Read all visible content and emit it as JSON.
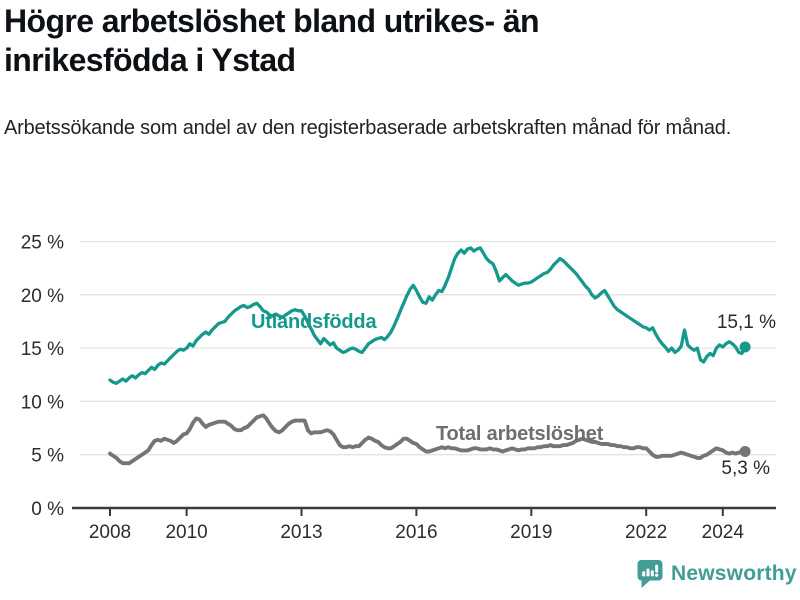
{
  "header": {
    "title": "Högre arbetslöshet bland utrikes- än inrikesfödda i Ystad",
    "subtitle": "Arbetssökande som andel av den registerbaserade arbetskraften månad för månad."
  },
  "footer": {
    "brand": "Newsworthy",
    "brand_icon": "bar-chart-speech-bubble-icon",
    "brand_color": "#419d96"
  },
  "colors": {
    "accent_teal": "#14998c",
    "series_gray": "#757578",
    "gridline": "#e3e3e3",
    "axis": "#3a3a3a",
    "tick_label": "#2d2d2d",
    "background": "#ffffff"
  },
  "chart_data": {
    "type": "line",
    "title": "Högre arbetslöshet bland utrikes- än inrikesfödda i Ystad",
    "subtitle": "Arbetssökande som andel av den registerbaserade arbetskraften månad för månad.",
    "unit": "%",
    "frequency": "monthly",
    "x_start": "2008-01",
    "x_end": "2024-08",
    "x_ticks": [
      2008,
      2010,
      2013,
      2016,
      2019,
      2022,
      2024
    ],
    "x_tick_labels": [
      "2008",
      "2010",
      "2013",
      "2016",
      "2019",
      "2022",
      "2024"
    ],
    "y_ticks": [
      0,
      5,
      10,
      15,
      20,
      25
    ],
    "y_tick_labels": [
      "0 %",
      "5 %",
      "10 %",
      "15 %",
      "20 %",
      "25 %"
    ],
    "ylim": [
      0,
      26.5
    ],
    "grid": "horizontal",
    "legend_position": "inline-labels",
    "series": [
      {
        "name": "Utlandsfödda",
        "color": "#14998c",
        "end_label": "15,1 %",
        "last_value": 15.1,
        "values": [
          12.0,
          11.8,
          11.7,
          11.9,
          12.1,
          11.9,
          12.2,
          12.4,
          12.2,
          12.5,
          12.7,
          12.6,
          12.9,
          13.2,
          13.0,
          13.4,
          13.6,
          13.5,
          13.8,
          14.1,
          14.4,
          14.7,
          14.9,
          14.8,
          15.0,
          15.4,
          15.2,
          15.7,
          16.0,
          16.3,
          16.5,
          16.3,
          16.7,
          17.0,
          17.3,
          17.4,
          17.5,
          17.9,
          18.2,
          18.5,
          18.7,
          18.9,
          19.0,
          18.8,
          18.9,
          19.1,
          19.2,
          18.9,
          18.5,
          18.4,
          18.1,
          18.0,
          18.2,
          18.0,
          17.9,
          18.1,
          18.3,
          18.5,
          18.6,
          18.5,
          18.5,
          18.0,
          17.4,
          16.8,
          16.2,
          15.8,
          15.4,
          15.9,
          15.6,
          15.3,
          15.5,
          15.0,
          14.8,
          14.6,
          14.7,
          14.9,
          15.0,
          14.9,
          14.7,
          14.6,
          15.0,
          15.4,
          15.6,
          15.8,
          15.9,
          16.0,
          15.8,
          16.1,
          16.5,
          17.1,
          17.8,
          18.5,
          19.2,
          19.9,
          20.5,
          20.9,
          20.4,
          19.8,
          19.3,
          19.2,
          19.8,
          19.5,
          20.0,
          20.4,
          20.3,
          20.9,
          21.6,
          22.5,
          23.4,
          23.9,
          24.2,
          23.9,
          24.3,
          24.4,
          24.1,
          24.3,
          24.4,
          23.9,
          23.4,
          23.1,
          22.9,
          22.2,
          21.3,
          21.6,
          21.9,
          21.6,
          21.3,
          21.1,
          20.9,
          21.0,
          21.1,
          21.1,
          21.2,
          21.4,
          21.6,
          21.8,
          22.0,
          22.1,
          22.4,
          22.8,
          23.1,
          23.4,
          23.2,
          22.9,
          22.6,
          22.3,
          22.0,
          21.6,
          21.2,
          20.8,
          20.5,
          20.0,
          19.7,
          19.9,
          20.2,
          20.4,
          19.9,
          19.4,
          18.9,
          18.6,
          18.4,
          18.2,
          18.0,
          17.8,
          17.6,
          17.4,
          17.2,
          17.0,
          16.9,
          16.7,
          16.9,
          16.3,
          15.8,
          15.4,
          15.1,
          14.7,
          15.0,
          14.6,
          14.8,
          15.2,
          16.7,
          15.3,
          15.0,
          14.8,
          15.0,
          13.9,
          13.7,
          14.2,
          14.5,
          14.3,
          15.0,
          15.3,
          15.1,
          15.4,
          15.6,
          15.4,
          15.1,
          14.6,
          14.5,
          15.1
        ]
      },
      {
        "name": "Total arbetslöshet",
        "color": "#757578",
        "end_label": "5,3 %",
        "last_value": 5.3,
        "values": [
          5.1,
          4.9,
          4.7,
          4.4,
          4.2,
          4.2,
          4.2,
          4.4,
          4.6,
          4.8,
          5.0,
          5.2,
          5.4,
          5.9,
          6.3,
          6.4,
          6.3,
          6.5,
          6.4,
          6.3,
          6.1,
          6.3,
          6.6,
          6.9,
          7.0,
          7.4,
          8.0,
          8.4,
          8.3,
          7.9,
          7.6,
          7.8,
          7.9,
          8.0,
          8.1,
          8.1,
          8.1,
          7.9,
          7.7,
          7.4,
          7.3,
          7.3,
          7.5,
          7.6,
          7.9,
          8.2,
          8.5,
          8.6,
          8.7,
          8.4,
          7.9,
          7.5,
          7.2,
          7.1,
          7.3,
          7.6,
          7.9,
          8.1,
          8.2,
          8.2,
          8.2,
          8.2,
          7.3,
          7.0,
          7.1,
          7.1,
          7.1,
          7.2,
          7.3,
          7.2,
          6.9,
          6.4,
          5.9,
          5.7,
          5.7,
          5.8,
          5.7,
          5.8,
          5.8,
          6.1,
          6.4,
          6.6,
          6.5,
          6.3,
          6.2,
          5.9,
          5.7,
          5.6,
          5.6,
          5.8,
          6.0,
          6.2,
          6.5,
          6.5,
          6.3,
          6.1,
          6.0,
          5.7,
          5.5,
          5.3,
          5.3,
          5.4,
          5.5,
          5.6,
          5.7,
          5.6,
          5.7,
          5.6,
          5.6,
          5.5,
          5.4,
          5.4,
          5.4,
          5.5,
          5.6,
          5.6,
          5.5,
          5.5,
          5.5,
          5.6,
          5.5,
          5.5,
          5.4,
          5.3,
          5.4,
          5.5,
          5.6,
          5.5,
          5.4,
          5.5,
          5.5,
          5.6,
          5.6,
          5.6,
          5.7,
          5.7,
          5.8,
          5.8,
          5.9,
          5.8,
          5.8,
          5.8,
          5.9,
          5.9,
          6.0,
          6.1,
          6.3,
          6.4,
          6.5,
          6.4,
          6.3,
          6.2,
          6.2,
          6.1,
          6.0,
          6.0,
          6.0,
          5.9,
          5.9,
          5.8,
          5.8,
          5.7,
          5.7,
          5.6,
          5.6,
          5.7,
          5.7,
          5.6,
          5.6,
          5.3,
          5.0,
          4.8,
          4.8,
          4.9,
          4.9,
          4.9,
          4.9,
          5.0,
          5.1,
          5.2,
          5.1,
          5.0,
          4.9,
          4.8,
          4.7,
          4.7,
          4.9,
          5.0,
          5.2,
          5.4,
          5.6,
          5.5,
          5.4,
          5.2,
          5.1,
          5.2,
          5.1,
          5.2,
          5.3,
          5.3
        ]
      }
    ]
  }
}
